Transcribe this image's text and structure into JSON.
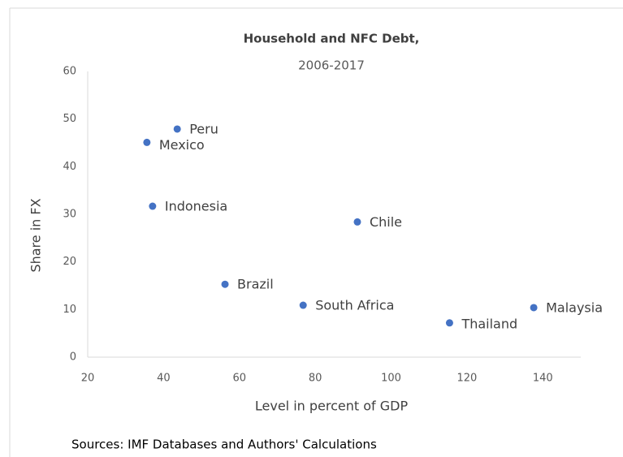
{
  "chart_data": {
    "type": "scatter",
    "title": "Household and NFC Debt,",
    "subtitle": "2006-2017",
    "x_label": "Level in percent of GDP",
    "y_label": "Share in FX",
    "source": "Sources: IMF Databases and Authors' Calculations",
    "labels": [
      "Peru",
      "Mexico",
      "Indonesia",
      "Chile",
      "Brazil",
      "South Africa",
      "Thailand",
      "Malaysia"
    ],
    "x": [
      43.6,
      35.6,
      37.1,
      91.1,
      56.2,
      76.8,
      115.4,
      137.6
    ],
    "series": [
      {
        "name": "Share in FX",
        "color": "#4472c4",
        "values": [
          47.9,
          45.1,
          31.7,
          28.4,
          15.3,
          10.9,
          7.2,
          10.4
        ]
      }
    ],
    "xlim": [
      20,
      150
    ],
    "xticks": [
      20,
      40,
      60,
      80,
      100,
      120,
      140
    ],
    "ylim": [
      0,
      60
    ],
    "yticks": [
      0,
      10,
      20,
      30,
      40,
      50,
      60
    ],
    "grid": false
  }
}
